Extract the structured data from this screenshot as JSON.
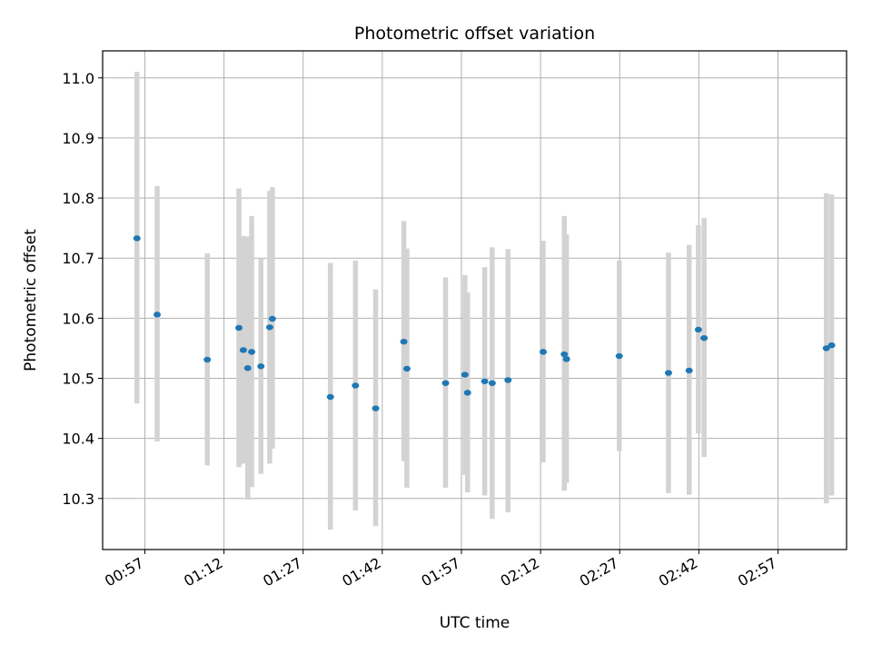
{
  "chart_data": {
    "type": "scatter",
    "title": "Photometric offset variation",
    "xlabel": "UTC time",
    "ylabel": "Photometric offset",
    "xlim": [
      "00:49",
      "03:10"
    ],
    "ylim": [
      10.215,
      11.045
    ],
    "x_ticks": [
      "00:57",
      "01:12",
      "01:27",
      "01:42",
      "01:57",
      "02:12",
      "02:27",
      "02:42",
      "02:57"
    ],
    "y_ticks": [
      10.3,
      10.4,
      10.5,
      10.6,
      10.7,
      10.8,
      10.9,
      11.0
    ],
    "grid": true,
    "point_color": "#1f77b4",
    "errorbar_color": "#d3d3d3",
    "series": [
      {
        "points": [
          {
            "x": "00:55:30",
            "y": 10.733,
            "lo": 10.458,
            "hi": 11.01
          },
          {
            "x": "00:59:20",
            "y": 10.606,
            "lo": 10.395,
            "hi": 10.82
          },
          {
            "x": "01:08:50",
            "y": 10.531,
            "lo": 10.355,
            "hi": 10.708
          },
          {
            "x": "01:14:50",
            "y": 10.584,
            "lo": 10.352,
            "hi": 10.816
          },
          {
            "x": "01:15:40",
            "y": 10.547,
            "lo": 10.358,
            "hi": 10.737
          },
          {
            "x": "01:16:30",
            "y": 10.517,
            "lo": 10.298,
            "hi": 10.736
          },
          {
            "x": "01:17:15",
            "y": 10.544,
            "lo": 10.319,
            "hi": 10.77
          },
          {
            "x": "01:19:00",
            "y": 10.52,
            "lo": 10.341,
            "hi": 10.7
          },
          {
            "x": "01:20:40",
            "y": 10.585,
            "lo": 10.358,
            "hi": 10.812
          },
          {
            "x": "01:21:10",
            "y": 10.599,
            "lo": 10.383,
            "hi": 10.818
          },
          {
            "x": "01:32:10",
            "y": 10.469,
            "lo": 10.248,
            "hi": 10.692
          },
          {
            "x": "01:36:55",
            "y": 10.488,
            "lo": 10.28,
            "hi": 10.696
          },
          {
            "x": "01:40:45",
            "y": 10.45,
            "lo": 10.254,
            "hi": 10.648
          },
          {
            "x": "01:46:05",
            "y": 10.561,
            "lo": 10.362,
            "hi": 10.762
          },
          {
            "x": "01:46:40",
            "y": 10.516,
            "lo": 10.318,
            "hi": 10.716
          },
          {
            "x": "01:54:00",
            "y": 10.492,
            "lo": 10.318,
            "hi": 10.668
          },
          {
            "x": "01:57:40",
            "y": 10.506,
            "lo": 10.339,
            "hi": 10.672
          },
          {
            "x": "01:58:10",
            "y": 10.476,
            "lo": 10.31,
            "hi": 10.643
          },
          {
            "x": "02:01:25",
            "y": 10.495,
            "lo": 10.305,
            "hi": 10.685
          },
          {
            "x": "02:02:50",
            "y": 10.492,
            "lo": 10.266,
            "hi": 10.718
          },
          {
            "x": "02:05:50",
            "y": 10.497,
            "lo": 10.277,
            "hi": 10.715
          },
          {
            "x": "02:12:30",
            "y": 10.544,
            "lo": 10.36,
            "hi": 10.729
          },
          {
            "x": "02:16:30",
            "y": 10.54,
            "lo": 10.313,
            "hi": 10.77
          },
          {
            "x": "02:16:55",
            "y": 10.532,
            "lo": 10.326,
            "hi": 10.74
          },
          {
            "x": "02:26:55",
            "y": 10.537,
            "lo": 10.379,
            "hi": 10.696
          },
          {
            "x": "02:36:15",
            "y": 10.509,
            "lo": 10.309,
            "hi": 10.709
          },
          {
            "x": "02:40:10",
            "y": 10.513,
            "lo": 10.306,
            "hi": 10.722
          },
          {
            "x": "02:41:55",
            "y": 10.581,
            "lo": 10.408,
            "hi": 10.755
          },
          {
            "x": "02:43:00",
            "y": 10.567,
            "lo": 10.369,
            "hi": 10.767
          },
          {
            "x": "03:06:10",
            "y": 10.55,
            "lo": 10.292,
            "hi": 10.808
          },
          {
            "x": "03:07:10",
            "y": 10.555,
            "lo": 10.305,
            "hi": 10.806
          }
        ]
      }
    ]
  }
}
